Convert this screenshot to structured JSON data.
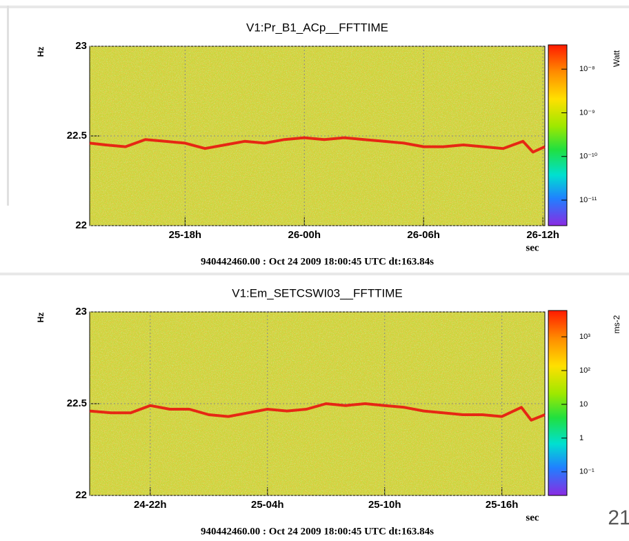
{
  "chart_data": [
    {
      "type": "spectrogram",
      "title": "V1:Pr_B1_ACp__FFTTIME",
      "ylabel": "Hz",
      "xlabel": "sec",
      "zlabel": "Watt",
      "footer": "940442460.00 : Oct 24 2009 18:00:45 UTC dt:163.84s",
      "x": [
        13.2,
        14,
        15,
        16,
        17,
        18,
        19,
        20,
        21,
        22,
        23,
        24,
        25,
        26,
        27,
        28,
        29,
        30,
        31,
        32,
        33,
        34,
        35,
        35.5,
        36.1
      ],
      "values": [
        22.46,
        22.45,
        22.44,
        22.48,
        22.47,
        22.46,
        22.43,
        22.45,
        22.47,
        22.46,
        22.48,
        22.49,
        22.48,
        22.49,
        22.48,
        22.47,
        22.46,
        22.44,
        22.44,
        22.45,
        22.44,
        22.43,
        22.47,
        22.41,
        22.44
      ],
      "color": "#e8140e",
      "xlim": [
        13.2,
        36.1
      ],
      "xticks": [
        {
          "value": 18,
          "label": "25-18h"
        },
        {
          "value": 24,
          "label": "26-00h"
        },
        {
          "value": 30,
          "label": "26-06h"
        },
        {
          "value": 36,
          "label": "26-12h"
        }
      ],
      "ylim": [
        22,
        23
      ],
      "yticks": [
        22,
        22.5,
        23
      ],
      "grid": true,
      "zscale": "log",
      "zlim": [
        2.6e-12,
        3.6e-08
      ],
      "zticks": [
        {
          "value": 1e-08,
          "label": "10⁻⁸"
        },
        {
          "value": 1e-09,
          "label": "10⁻⁹"
        },
        {
          "value": 1e-10,
          "label": "10⁻¹⁰"
        },
        {
          "value": 1e-11,
          "label": "10⁻¹¹"
        }
      ]
    },
    {
      "type": "spectrogram",
      "title": "V1:Em_SETCSWI03__FFTTIME",
      "ylabel": "Hz",
      "xlabel": "sec",
      "zlabel": "ms-2",
      "footer": "940442460.00 : Oct 24 2009 18:00:45 UTC dt:163.84s",
      "x": [
        18.9,
        20,
        21,
        22,
        23,
        24,
        25,
        26,
        27,
        28,
        29,
        30,
        31,
        32,
        33,
        34,
        35,
        36,
        37,
        38,
        39,
        40,
        41,
        41.5,
        42.2
      ],
      "values": [
        22.46,
        22.45,
        22.45,
        22.49,
        22.47,
        22.47,
        22.44,
        22.43,
        22.45,
        22.47,
        22.46,
        22.47,
        22.5,
        22.49,
        22.5,
        22.49,
        22.48,
        22.46,
        22.45,
        22.44,
        22.44,
        22.43,
        22.48,
        22.41,
        22.44
      ],
      "color": "#e8140e",
      "xlim": [
        18.9,
        42.2
      ],
      "xticks": [
        {
          "value": 22,
          "label": "24-22h"
        },
        {
          "value": 28,
          "label": "25-04h"
        },
        {
          "value": 34,
          "label": "25-10h"
        },
        {
          "value": 40,
          "label": "25-16h"
        }
      ],
      "ylim": [
        22,
        23
      ],
      "yticks": [
        22,
        22.5,
        23
      ],
      "grid": true,
      "zscale": "log",
      "zlim": [
        0.02,
        6000
      ],
      "zticks": [
        {
          "value": 1000,
          "label": "10³"
        },
        {
          "value": 100,
          "label": "10²"
        },
        10,
        1,
        {
          "value": 0.1,
          "label": "10⁻¹"
        }
      ]
    }
  ],
  "page_number": "21"
}
